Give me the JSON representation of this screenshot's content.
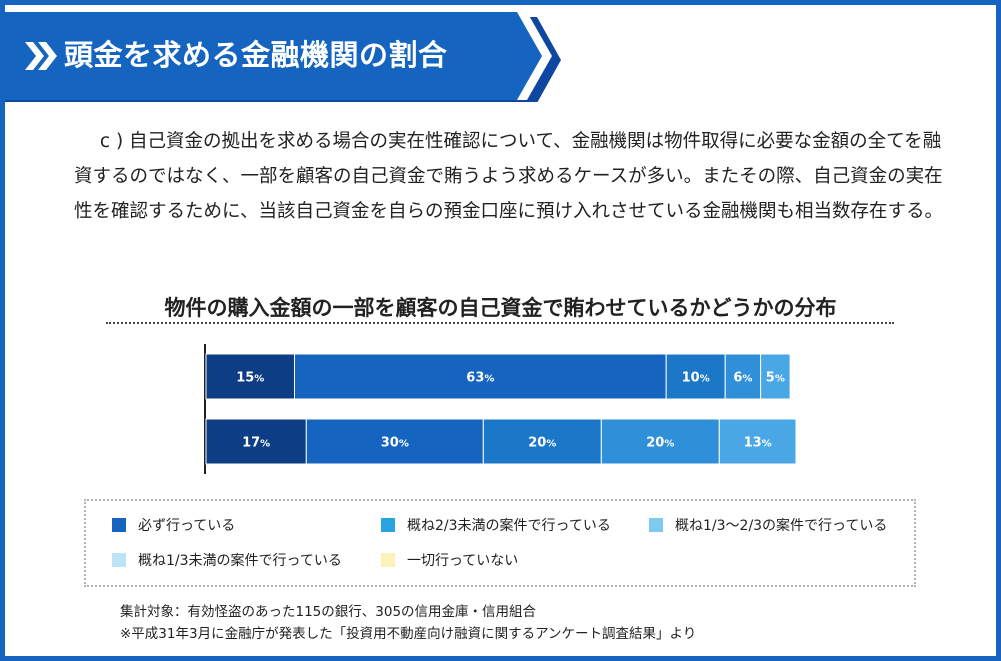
{
  "header": {
    "title": "頭金を求める金融機関の割合"
  },
  "intro": {
    "paragraph": "c ) 自己資金の拠出を求める場合の実在性確認について、金融機関は物件取得に必要な金額の全てを融資するのではなく、一部を顧客の自己資金で賄うよう求めるケースが多い。またその際、自己資金の実在性を確認するために、当該自己資金を自らの預金口座に預け入れさせている金融機関も相当数存在する。"
  },
  "chart_data": {
    "type": "bar",
    "orientation": "horizontal-stacked-percent",
    "title": "物件の購入金額の一部を顧客の自己資金で賄わせているかどうかの分布",
    "xlabel": "",
    "ylabel": "",
    "xlim": [
      0,
      100
    ],
    "grid": false,
    "legend_placement": "bottom",
    "percent_unit": "%",
    "categories": [
      "",
      ""
    ],
    "series": [
      {
        "name": "必ず行っている",
        "color": "#0d3d84",
        "values": [
          15,
          17
        ]
      },
      {
        "name": "概ね2/3未満の案件で行っている",
        "color": "#1565c0",
        "values": [
          63,
          30
        ]
      },
      {
        "name": "概ね1/3～2/3の案件で行っている",
        "color": "#1b78c8",
        "values": [
          10,
          20
        ]
      },
      {
        "name": "概ね1/3未満の案件で行っている",
        "color": "#2f8fd8",
        "values": [
          6,
          20
        ]
      },
      {
        "name": "一切行っていない",
        "color": "#4aa7e6",
        "values": [
          5,
          13
        ]
      }
    ]
  },
  "legend": {
    "items": [
      {
        "label": "必ず行っている",
        "color": "#1565c0"
      },
      {
        "label": "概ね2/3未満の案件で行っている",
        "color": "#29a3e0"
      },
      {
        "label": "概ね1/3～2/3の案件で行っている",
        "color": "#7fc8ee"
      },
      {
        "label": "概ね1/3未満の案件で行っている",
        "color": "#bde3f7"
      },
      {
        "label": "一切行っていない",
        "color": "#fbf3b8"
      }
    ]
  },
  "notes": {
    "line1": "集計対象：有効怪盗のあった115の銀行、305の信用金庫・信用組合",
    "line2": "※平成31年3月に金融庁が発表した「投資用不動産向け融資に関するアンケート調査結果」より"
  },
  "colors": {
    "frame": "#1565c0",
    "banner": "#1565c0",
    "banner_edge": "#0d47a1"
  }
}
